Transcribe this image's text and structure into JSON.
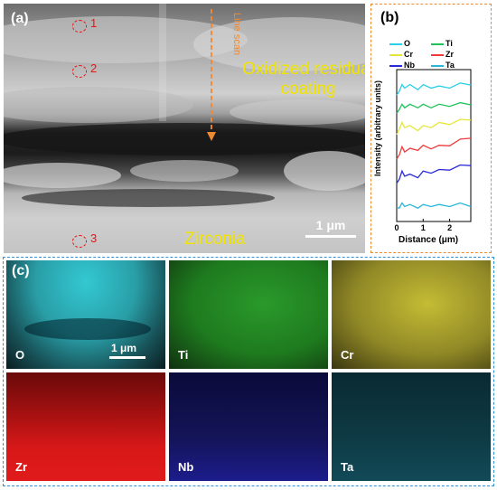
{
  "panel_a": {
    "label": "(a)",
    "markers": [
      {
        "number": "1"
      },
      {
        "number": "2"
      },
      {
        "number": "3"
      }
    ],
    "line_scan_label": "Line scan",
    "coating_label": "Oxidized residual coating",
    "zirconia_label": "Zirconia",
    "scale_bar_label": "1 μm",
    "colors": {
      "marker": "#ee1111",
      "line_scan": "#f08a30",
      "text": "#f0e400"
    }
  },
  "panel_b": {
    "label": "(b)",
    "legend": [
      {
        "name": "O",
        "color": "#2ad0e8"
      },
      {
        "name": "Ti",
        "color": "#22c25a"
      },
      {
        "name": "Cr",
        "color": "#e6e63a"
      },
      {
        "name": "Zr",
        "color": "#ee3a3a"
      },
      {
        "name": "Nb",
        "color": "#2a2ad6"
      },
      {
        "name": "Ta",
        "color": "#2ab6d8"
      }
    ]
  },
  "chart_data": {
    "type": "line",
    "xlabel": "Distance (μm)",
    "ylabel": "Intensity (arbitrary units)",
    "xlim": [
      0,
      2.8
    ],
    "x_ticks": [
      "0",
      "1",
      "2"
    ],
    "x": [
      0,
      0.1,
      0.2,
      0.3,
      0.5,
      0.8,
      1.0,
      1.3,
      1.6,
      2.0,
      2.4,
      2.8
    ],
    "series": [
      {
        "name": "O",
        "color": "#2ad0e8",
        "values": [
          8.2,
          8.7,
          8.9,
          8.9,
          8.9,
          8.8,
          8.9,
          8.9,
          8.8,
          8.9,
          9.0,
          9.1
        ]
      },
      {
        "name": "Ti",
        "color": "#22c25a",
        "values": [
          7.0,
          7.5,
          7.6,
          7.6,
          7.6,
          7.6,
          7.6,
          7.6,
          7.6,
          7.7,
          7.7,
          7.8
        ]
      },
      {
        "name": "Cr",
        "color": "#e6e63a",
        "values": [
          5.6,
          6.2,
          6.4,
          6.3,
          6.2,
          6.1,
          6.2,
          6.3,
          6.4,
          6.5,
          6.6,
          6.8
        ]
      },
      {
        "name": "Zr",
        "color": "#ee3a3a",
        "values": [
          4.0,
          4.5,
          4.8,
          4.7,
          4.7,
          4.8,
          4.9,
          4.9,
          4.9,
          5.1,
          5.3,
          5.6
        ]
      },
      {
        "name": "Nb",
        "color": "#2a2ad6",
        "values": [
          2.4,
          2.9,
          3.2,
          3.1,
          3.0,
          3.0,
          3.2,
          3.3,
          3.3,
          3.5,
          3.6,
          3.8
        ]
      },
      {
        "name": "Ta",
        "color": "#2ab6d8",
        "values": [
          0.8,
          1.0,
          1.1,
          1.1,
          1.0,
          1.0,
          1.0,
          1.1,
          1.0,
          1.1,
          1.1,
          1.1
        ]
      }
    ],
    "ylim": [
      0,
      10
    ],
    "grid": false,
    "legend_position": "top"
  },
  "panel_c": {
    "label": "(c)",
    "scale_bar_label": "1 μm",
    "maps": [
      {
        "element": "O",
        "color": "#33c8d2"
      },
      {
        "element": "Ti",
        "color": "#2a9a2a"
      },
      {
        "element": "Cr",
        "color": "#b8b02a"
      },
      {
        "element": "Zr",
        "color": "#e01a1a"
      },
      {
        "element": "Nb",
        "color": "#1c1c8c"
      },
      {
        "element": "Ta",
        "color": "#1a8aa0"
      }
    ]
  }
}
